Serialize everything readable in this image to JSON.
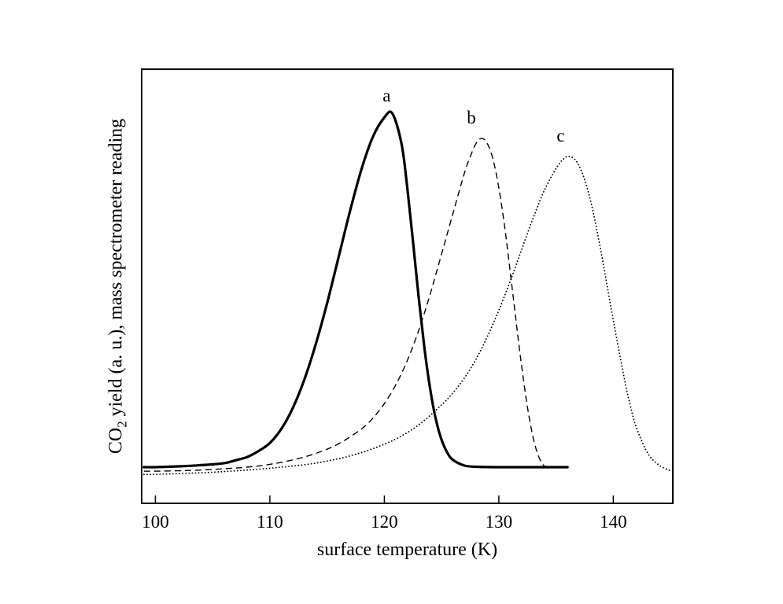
{
  "chart_data": {
    "type": "line",
    "title": "",
    "xlabel": "surface temperature (K)",
    "ylabel": "CO2 yield (a. u.), mass spectrometer reading",
    "ylabel_parts": {
      "pre": "CO",
      "sub": "2",
      "post": " yield (a. u.), mass spectrometer reading"
    },
    "xlim": [
      98.8,
      145.2
    ],
    "ylim": [
      0,
      1.08
    ],
    "xticks": [
      100,
      110,
      120,
      130,
      140
    ],
    "yticks": [],
    "grid": false,
    "background": "#ffffff",
    "line_color": "#000000",
    "legend": "none",
    "series": [
      {
        "name": "a",
        "line_style": "solid",
        "line_width": 3.2,
        "peak_x": 120.7,
        "points": [
          [
            99,
            0.09
          ],
          [
            100,
            0.09
          ],
          [
            102,
            0.092
          ],
          [
            104,
            0.095
          ],
          [
            106,
            0.1
          ],
          [
            107,
            0.107
          ],
          [
            108,
            0.115
          ],
          [
            109,
            0.13
          ],
          [
            110,
            0.15
          ],
          [
            111,
            0.185
          ],
          [
            112,
            0.237
          ],
          [
            113,
            0.307
          ],
          [
            114,
            0.395
          ],
          [
            115,
            0.498
          ],
          [
            116,
            0.612
          ],
          [
            117,
            0.727
          ],
          [
            118,
            0.831
          ],
          [
            119,
            0.912
          ],
          [
            120,
            0.96
          ],
          [
            120.7,
            0.97
          ],
          [
            121.5,
            0.895
          ],
          [
            122,
            0.786
          ],
          [
            122.5,
            0.652
          ],
          [
            123,
            0.513
          ],
          [
            123.5,
            0.387
          ],
          [
            124,
            0.285
          ],
          [
            124.5,
            0.209
          ],
          [
            125,
            0.158
          ],
          [
            125.5,
            0.126
          ],
          [
            126,
            0.108
          ],
          [
            127,
            0.094
          ],
          [
            128,
            0.091
          ],
          [
            130,
            0.09
          ],
          [
            133,
            0.09
          ],
          [
            136,
            0.09
          ]
        ]
      },
      {
        "name": "b",
        "line_style": "dashed",
        "line_width": 1.4,
        "peak_x": 128.3,
        "points": [
          [
            99,
            0.08
          ],
          [
            100,
            0.08
          ],
          [
            102,
            0.081
          ],
          [
            104,
            0.083
          ],
          [
            106,
            0.086
          ],
          [
            108,
            0.09
          ],
          [
            110,
            0.097
          ],
          [
            112,
            0.108
          ],
          [
            114,
            0.124
          ],
          [
            116,
            0.148
          ],
          [
            118,
            0.185
          ],
          [
            119,
            0.212
          ],
          [
            120,
            0.248
          ],
          [
            121,
            0.295
          ],
          [
            122,
            0.355
          ],
          [
            123,
            0.43
          ],
          [
            124,
            0.52
          ],
          [
            125,
            0.62
          ],
          [
            126,
            0.722
          ],
          [
            127,
            0.822
          ],
          [
            127.5,
            0.862
          ],
          [
            128,
            0.895
          ],
          [
            128.5,
            0.908
          ],
          [
            129,
            0.895
          ],
          [
            129.5,
            0.855
          ],
          [
            130,
            0.785
          ],
          [
            130.5,
            0.69
          ],
          [
            131,
            0.575
          ],
          [
            131.5,
            0.455
          ],
          [
            132,
            0.34
          ],
          [
            132.5,
            0.24
          ],
          [
            133,
            0.163
          ],
          [
            133.5,
            0.115
          ],
          [
            134,
            0.092
          ],
          [
            134.5,
            0.086
          ]
        ]
      },
      {
        "name": "c",
        "line_style": "dotted",
        "line_width": 1.8,
        "peak_x": 136.2,
        "points": [
          [
            99,
            0.072
          ],
          [
            100,
            0.072
          ],
          [
            103,
            0.075
          ],
          [
            106,
            0.079
          ],
          [
            109,
            0.085
          ],
          [
            111,
            0.09
          ],
          [
            113,
            0.096
          ],
          [
            115,
            0.105
          ],
          [
            117,
            0.118
          ],
          [
            119,
            0.136
          ],
          [
            121,
            0.16
          ],
          [
            123,
            0.195
          ],
          [
            125,
            0.245
          ],
          [
            126,
            0.275
          ],
          [
            127,
            0.312
          ],
          [
            128,
            0.358
          ],
          [
            129,
            0.415
          ],
          [
            130,
            0.48
          ],
          [
            131,
            0.553
          ],
          [
            132,
            0.632
          ],
          [
            133,
            0.71
          ],
          [
            134,
            0.78
          ],
          [
            135,
            0.833
          ],
          [
            135.7,
            0.858
          ],
          [
            136.2,
            0.863
          ],
          [
            136.8,
            0.85
          ],
          [
            137.5,
            0.805
          ],
          [
            138.2,
            0.73
          ],
          [
            139,
            0.615
          ],
          [
            140,
            0.455
          ],
          [
            141,
            0.305
          ],
          [
            141.5,
            0.242
          ],
          [
            142,
            0.19
          ],
          [
            143,
            0.125
          ],
          [
            144,
            0.095
          ],
          [
            145,
            0.081
          ]
        ]
      }
    ],
    "annotations": [
      {
        "text": "a",
        "x": 120.2,
        "y": 1.0
      },
      {
        "text": "b",
        "x": 127.6,
        "y": 0.945
      },
      {
        "text": "c",
        "x": 135.4,
        "y": 0.9
      }
    ]
  }
}
